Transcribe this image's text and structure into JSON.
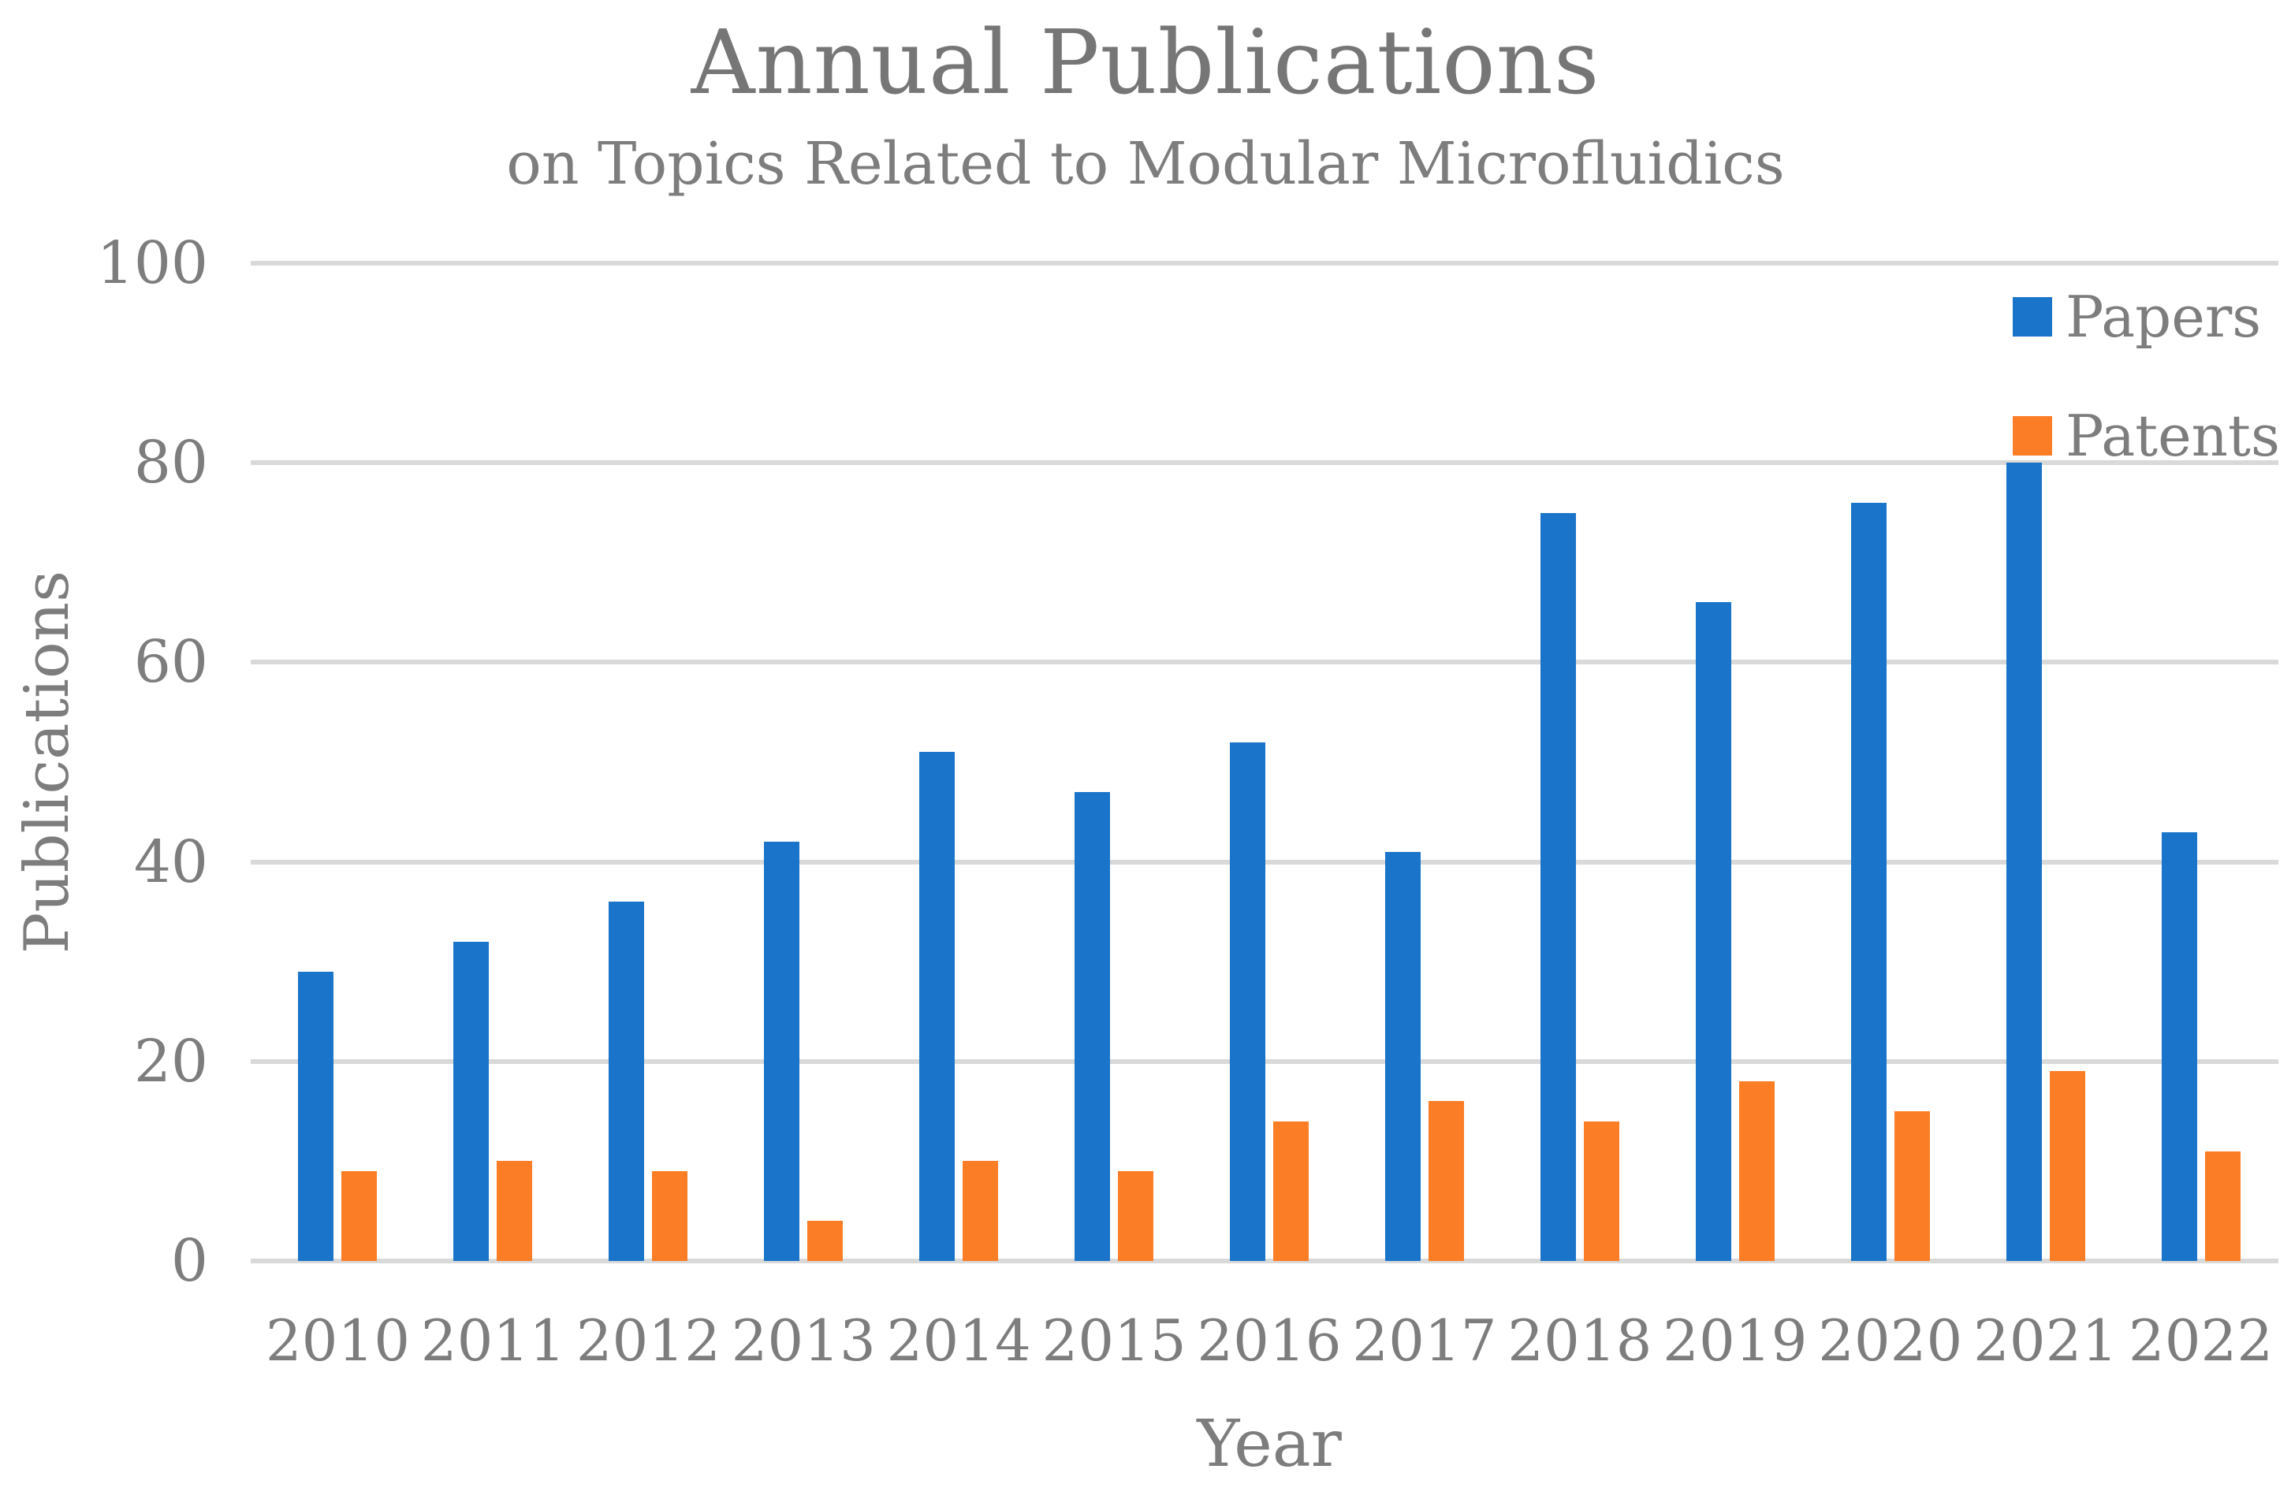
{
  "chart_data": {
    "type": "bar",
    "title": "Annual Publications",
    "subtitle": "on Topics Related to Modular Microfluidics",
    "xlabel": "Year",
    "ylabel": "Publications",
    "categories": [
      "2010",
      "2011",
      "2012",
      "2013",
      "2014",
      "2015",
      "2016",
      "2017",
      "2018",
      "2019",
      "2020",
      "2021",
      "2022"
    ],
    "series": [
      {
        "name": "Papers",
        "color": "#1a74ca",
        "values": [
          29,
          32,
          36,
          42,
          51,
          47,
          52,
          41,
          75,
          66,
          76,
          80,
          43
        ]
      },
      {
        "name": "Patents",
        "color": "#fb7d26",
        "values": [
          9,
          10,
          9,
          4,
          10,
          9,
          14,
          16,
          14,
          18,
          15,
          19,
          11
        ]
      }
    ],
    "ylim": [
      0,
      100
    ],
    "y_ticks": [
      0,
      20,
      40,
      60,
      80,
      100
    ],
    "grid": true,
    "legend_position": "top-right",
    "colors": {
      "gridline": "#d9d9d9",
      "text": "#7d7d7d",
      "title_text": "#767676",
      "background": "#ffffff"
    }
  }
}
